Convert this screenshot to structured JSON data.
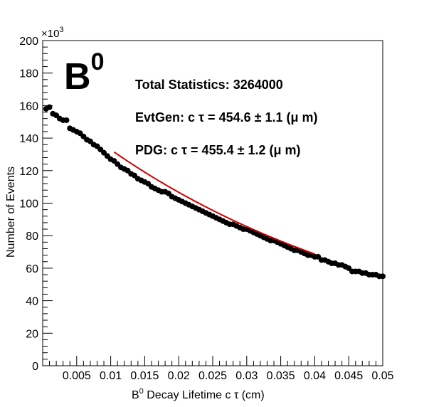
{
  "chart_data": {
    "type": "scatter",
    "title": "",
    "particle_label": "B",
    "particle_superscript": "0",
    "xlabel": {
      "prefix": "B",
      "sup": "0",
      "text": " Decay Lifetime c   τ (cm)"
    },
    "ylabel": "Number of Events",
    "y_multiplier": "×10",
    "y_multiplier_exp": "3",
    "xlim": [
      0.0,
      0.05
    ],
    "ylim": [
      0,
      200
    ],
    "x_ticks": [
      0.005,
      0.01,
      0.015,
      0.02,
      0.025,
      0.03,
      0.035,
      0.04,
      0.045,
      0.05
    ],
    "x_tick_labels": [
      "0.005",
      "0.01",
      "0.015",
      "0.02",
      "0.025",
      "0.03",
      "0.035",
      "0.04",
      "0.045",
      "0.05"
    ],
    "y_ticks": [
      0,
      20,
      40,
      60,
      80,
      100,
      120,
      140,
      160,
      180,
      200
    ],
    "y_tick_labels": [
      "0",
      "20",
      "40",
      "60",
      "80",
      "100",
      "120",
      "140",
      "160",
      "180",
      "200"
    ],
    "grid": false,
    "annotations": [
      "Total Statistics: 3264000",
      "EvtGen: c  τ = 454.6  ± 1.1 (μ m)",
      "PDG: c  τ = 455.4  ± 1.2 (μ m)"
    ],
    "series": [
      {
        "kind": "points",
        "marker_color": "#000000",
        "x": [
          0.0005,
          0.001,
          0.0015,
          0.002,
          0.0025,
          0.003,
          0.0035,
          0.004,
          0.0045,
          0.005,
          0.0055,
          0.006,
          0.0065,
          0.007,
          0.0075,
          0.008,
          0.0085,
          0.009,
          0.0095,
          0.01,
          0.0105,
          0.011,
          0.0115,
          0.012,
          0.0125,
          0.013,
          0.0135,
          0.014,
          0.0145,
          0.015,
          0.0155,
          0.016,
          0.0165,
          0.017,
          0.0175,
          0.018,
          0.0185,
          0.019,
          0.0195,
          0.02,
          0.0205,
          0.021,
          0.0215,
          0.022,
          0.0225,
          0.023,
          0.0235,
          0.024,
          0.0245,
          0.025,
          0.0255,
          0.026,
          0.0265,
          0.027,
          0.0275,
          0.028,
          0.0285,
          0.029,
          0.0295,
          0.03,
          0.0305,
          0.031,
          0.0315,
          0.032,
          0.0325,
          0.033,
          0.0335,
          0.034,
          0.0345,
          0.035,
          0.0355,
          0.036,
          0.0365,
          0.037,
          0.0375,
          0.038,
          0.0385,
          0.039,
          0.0395,
          0.04,
          0.0405,
          0.041,
          0.0415,
          0.042,
          0.0425,
          0.043,
          0.0435,
          0.044,
          0.0445,
          0.045,
          0.0455,
          0.046,
          0.0465,
          0.047,
          0.0475,
          0.048,
          0.0485,
          0.049,
          0.0495,
          0.05
        ],
        "y": [
          158,
          159,
          155,
          154,
          152,
          151,
          151,
          146,
          145,
          144,
          143,
          141,
          139,
          138,
          136,
          135,
          133,
          131,
          129,
          127,
          126,
          124,
          122,
          121,
          120,
          118,
          117,
          115,
          114,
          113,
          112,
          110,
          109,
          108,
          107,
          107,
          106,
          104,
          103,
          102,
          101,
          100,
          99,
          98,
          97,
          96,
          95,
          94,
          93,
          92,
          91,
          90,
          89,
          88,
          87,
          87,
          86,
          85,
          84,
          84,
          83,
          82,
          81,
          80,
          79,
          78,
          77,
          77,
          76,
          75,
          74,
          73,
          72,
          71,
          71,
          70,
          69,
          68,
          68,
          67,
          67,
          65,
          65,
          64,
          63,
          63,
          62,
          62,
          61,
          60,
          58,
          58,
          58,
          57,
          57,
          56,
          56,
          56,
          55,
          55
        ]
      },
      {
        "kind": "fit",
        "name": "",
        "color": "#cc0000",
        "x_range": [
          0.0105,
          0.04
        ],
        "formula": "y = 165.6 * exp(-x / 0.04546)"
      }
    ]
  }
}
